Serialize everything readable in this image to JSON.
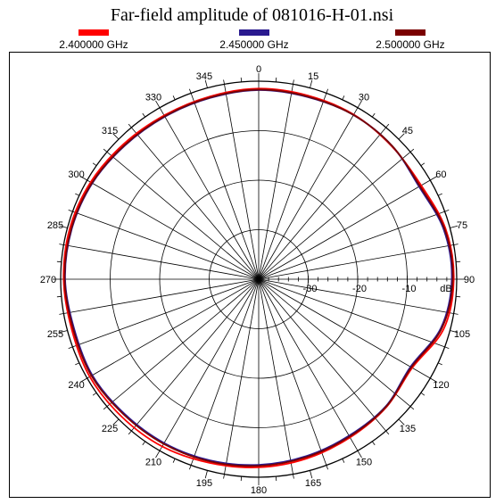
{
  "chart_data": {
    "type": "line",
    "subtype": "polar",
    "title": "Far-field amplitude of 081016-H-01.nsi",
    "radial_unit_label": "dB",
    "radial_range": [
      -40,
      0
    ],
    "radial_ticks": [
      -30,
      -20,
      -10
    ],
    "angle_ticks": [
      0,
      15,
      30,
      45,
      60,
      75,
      90,
      105,
      120,
      135,
      150,
      165,
      180,
      195,
      210,
      225,
      240,
      255,
      270,
      285,
      300,
      315,
      330,
      345
    ],
    "angle_direction": "clockwise, 0 at top",
    "grid": true,
    "legend_position": "top",
    "series": [
      {
        "name": "2.400000 GHz",
        "color": "#ff0000",
        "angles": [
          0,
          15,
          30,
          45,
          60,
          75,
          90,
          105,
          120,
          135,
          150,
          165,
          180,
          195,
          210,
          225,
          240,
          255,
          270,
          285,
          300,
          315,
          330,
          345
        ],
        "values": [
          -1.5,
          -1.6,
          -1.6,
          -2.0,
          -2.1,
          -0.9,
          -0.6,
          -1.3,
          -4.2,
          -3.5,
          -3.1,
          -2.5,
          -2.0,
          -1.6,
          -1.0,
          -0.8,
          -0.6,
          -0.9,
          -0.6,
          -0.5,
          -0.8,
          -1.4,
          -1.8,
          -1.8
        ]
      },
      {
        "name": "2.450000 GHz",
        "color": "#2a1a8f",
        "angles": [
          0,
          15,
          30,
          45,
          60,
          75,
          90,
          105,
          120,
          135,
          150,
          165,
          180,
          195,
          210,
          225,
          240,
          255,
          270,
          285,
          300,
          315,
          330,
          345
        ],
        "values": [
          -1.8,
          -1.9,
          -1.7,
          -1.9,
          -2.6,
          -1.3,
          -1.0,
          -1.9,
          -4.6,
          -3.7,
          -3.5,
          -3.0,
          -2.5,
          -2.1,
          -1.8,
          -1.6,
          -1.2,
          -1.4,
          -0.9,
          -0.9,
          -1.2,
          -1.8,
          -2.1,
          -2.1
        ]
      },
      {
        "name": "2.500000 GHz",
        "color": "#7a0000",
        "angles": [
          0,
          15,
          30,
          45,
          60,
          75,
          90,
          105,
          120,
          135,
          150,
          165,
          180,
          195,
          210,
          225,
          240,
          255,
          270,
          285,
          300,
          315,
          330,
          345
        ],
        "values": [
          -1.7,
          -1.8,
          -1.7,
          -1.9,
          -2.4,
          -1.1,
          -0.8,
          -1.7,
          -4.4,
          -3.6,
          -3.3,
          -2.8,
          -2.3,
          -1.9,
          -1.6,
          -1.4,
          -1.0,
          -1.2,
          -0.8,
          -0.8,
          -1.1,
          -1.7,
          -2.0,
          -2.0
        ]
      }
    ]
  }
}
